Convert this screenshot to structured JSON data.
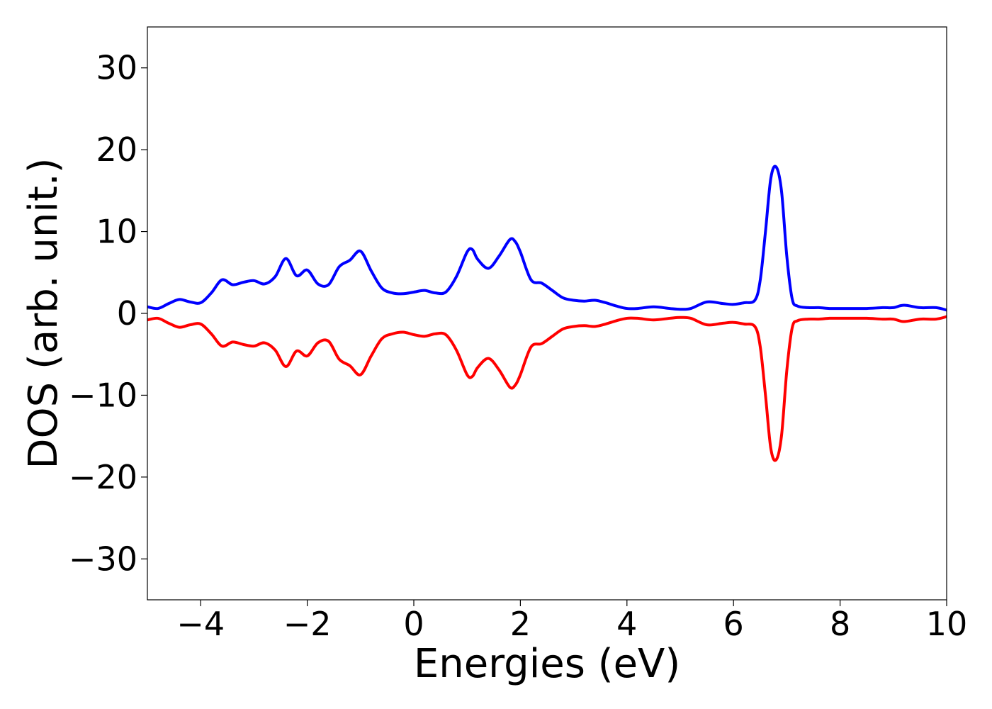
{
  "chart_data": {
    "type": "line",
    "title": "",
    "xlabel": "Energies (eV)",
    "ylabel": "DOS (arb. unit.)",
    "xlim": [
      -5,
      10
    ],
    "ylim": [
      -35,
      35
    ],
    "grid": false,
    "x_ticks": [
      -4,
      -2,
      0,
      2,
      4,
      6,
      8,
      10
    ],
    "x_tick_labels": [
      "−4",
      "−2",
      "0",
      "2",
      "4",
      "6",
      "8",
      "10"
    ],
    "y_ticks": [
      30,
      20,
      10,
      0,
      -10,
      -20,
      -30
    ],
    "y_tick_labels": [
      "30",
      "20",
      "10",
      "0",
      "−10",
      "−20",
      "−30"
    ],
    "series": [
      {
        "color": "#0000ff",
        "x": [
          -5.0,
          -4.8,
          -4.6,
          -4.4,
          -4.2,
          -4.0,
          -3.8,
          -3.6,
          -3.4,
          -3.2,
          -3.0,
          -2.8,
          -2.6,
          -2.4,
          -2.2,
          -2.0,
          -1.8,
          -1.6,
          -1.4,
          -1.2,
          -1.0,
          -0.8,
          -0.6,
          -0.4,
          -0.2,
          0.0,
          0.2,
          0.4,
          0.6,
          0.8,
          1.0,
          1.1,
          1.2,
          1.4,
          1.6,
          1.8,
          1.9,
          2.0,
          2.2,
          2.4,
          2.6,
          2.8,
          3.0,
          3.2,
          3.4,
          3.6,
          3.8,
          4.0,
          4.2,
          4.5,
          4.8,
          5.0,
          5.2,
          5.5,
          5.8,
          6.0,
          6.2,
          6.4,
          6.5,
          6.6,
          6.7,
          6.8,
          6.9,
          7.0,
          7.1,
          7.2,
          7.4,
          7.6,
          7.8,
          8.0,
          8.2,
          8.5,
          8.8,
          9.0,
          9.2,
          9.5,
          9.8,
          10.0
        ],
        "y": [
          0.8,
          0.6,
          1.2,
          1.7,
          1.4,
          1.3,
          2.5,
          4.1,
          3.5,
          3.8,
          4.0,
          3.6,
          4.5,
          6.7,
          4.6,
          5.3,
          3.6,
          3.5,
          5.7,
          6.5,
          7.6,
          5.2,
          3.1,
          2.5,
          2.4,
          2.6,
          2.8,
          2.5,
          2.6,
          4.5,
          7.5,
          7.8,
          6.6,
          5.5,
          7.0,
          9.0,
          8.8,
          7.5,
          4.1,
          3.7,
          2.8,
          1.9,
          1.6,
          1.5,
          1.6,
          1.3,
          0.9,
          0.6,
          0.6,
          0.8,
          0.6,
          0.5,
          0.6,
          1.4,
          1.2,
          1.1,
          1.3,
          1.6,
          4.0,
          10.0,
          16.5,
          17.9,
          15.0,
          7.0,
          1.8,
          0.9,
          0.7,
          0.7,
          0.6,
          0.6,
          0.6,
          0.6,
          0.7,
          0.7,
          1.0,
          0.7,
          0.7,
          0.4
        ]
      },
      {
        "color": "#ff0000",
        "x": [
          -5.0,
          -4.8,
          -4.6,
          -4.4,
          -4.2,
          -4.0,
          -3.8,
          -3.6,
          -3.4,
          -3.2,
          -3.0,
          -2.8,
          -2.6,
          -2.4,
          -2.2,
          -2.0,
          -1.8,
          -1.6,
          -1.4,
          -1.2,
          -1.0,
          -0.8,
          -0.6,
          -0.4,
          -0.2,
          0.0,
          0.2,
          0.4,
          0.6,
          0.8,
          1.0,
          1.1,
          1.2,
          1.4,
          1.6,
          1.8,
          1.9,
          2.0,
          2.2,
          2.4,
          2.6,
          2.8,
          3.0,
          3.2,
          3.4,
          3.6,
          3.8,
          4.0,
          4.2,
          4.5,
          4.8,
          5.0,
          5.2,
          5.5,
          5.8,
          6.0,
          6.2,
          6.4,
          6.5,
          6.6,
          6.7,
          6.8,
          6.9,
          7.0,
          7.1,
          7.2,
          7.4,
          7.6,
          7.8,
          8.0,
          8.2,
          8.5,
          8.8,
          9.0,
          9.2,
          9.5,
          9.8,
          10.0
        ],
        "y": [
          -0.8,
          -0.6,
          -1.2,
          -1.7,
          -1.4,
          -1.3,
          -2.5,
          -4.0,
          -3.5,
          -3.8,
          -4.0,
          -3.6,
          -4.5,
          -6.5,
          -4.6,
          -5.2,
          -3.6,
          -3.4,
          -5.6,
          -6.4,
          -7.5,
          -5.2,
          -3.1,
          -2.5,
          -2.3,
          -2.6,
          -2.8,
          -2.5,
          -2.6,
          -4.5,
          -7.5,
          -7.7,
          -6.6,
          -5.5,
          -6.9,
          -9.0,
          -8.8,
          -7.5,
          -4.1,
          -3.7,
          -2.8,
          -1.9,
          -1.6,
          -1.5,
          -1.6,
          -1.3,
          -0.9,
          -0.6,
          -0.6,
          -0.8,
          -0.6,
          -0.5,
          -0.6,
          -1.4,
          -1.2,
          -1.1,
          -1.3,
          -1.6,
          -4.0,
          -10.0,
          -16.5,
          -17.9,
          -15.0,
          -7.0,
          -1.8,
          -0.9,
          -0.7,
          -0.7,
          -0.6,
          -0.6,
          -0.6,
          -0.6,
          -0.7,
          -0.7,
          -1.0,
          -0.7,
          -0.7,
          -0.4
        ]
      }
    ]
  }
}
